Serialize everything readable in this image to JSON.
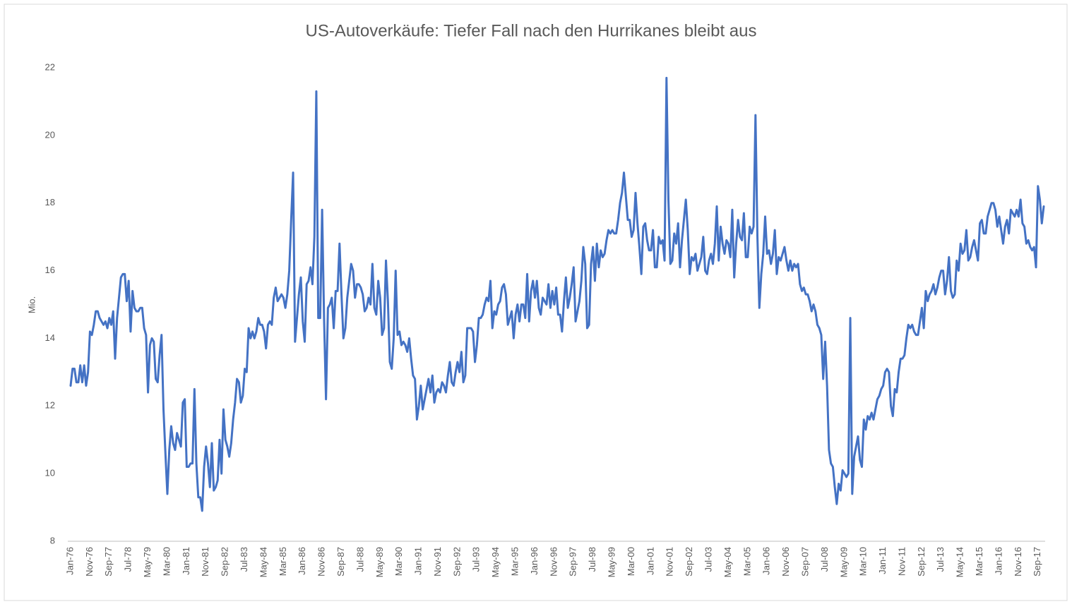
{
  "chart_data": {
    "type": "line",
    "title": "US-Autoverkäufe: Tiefer Fall nach den Hurrikanes bleibt aus",
    "y_label": "Mio.",
    "color": "#4472c4",
    "grid": false,
    "ylim": [
      8,
      22
    ],
    "yticks": [
      8,
      10,
      12,
      14,
      16,
      18,
      20,
      22
    ],
    "categories": [
      "Jan-76",
      null,
      null,
      null,
      null,
      null,
      null,
      null,
      null,
      null,
      "Nov-76",
      null,
      null,
      null,
      null,
      null,
      null,
      null,
      null,
      null,
      "Sep-77",
      null,
      null,
      null,
      null,
      null,
      null,
      null,
      null,
      null,
      "Jul-78",
      null,
      null,
      null,
      null,
      null,
      null,
      null,
      null,
      null,
      "May-79",
      null,
      null,
      null,
      null,
      null,
      null,
      null,
      null,
      null,
      "Mar-80",
      null,
      null,
      null,
      null,
      null,
      null,
      null,
      null,
      null,
      "Jan-81",
      null,
      null,
      null,
      null,
      null,
      null,
      null,
      null,
      null,
      "Nov-81",
      null,
      null,
      null,
      null,
      null,
      null,
      null,
      null,
      null,
      "Sep-82",
      null,
      null,
      null,
      null,
      null,
      null,
      null,
      null,
      null,
      "Jul-83",
      null,
      null,
      null,
      null,
      null,
      null,
      null,
      null,
      null,
      "May-84",
      null,
      null,
      null,
      null,
      null,
      null,
      null,
      null,
      null,
      "Mar-85",
      null,
      null,
      null,
      null,
      null,
      null,
      null,
      null,
      null,
      "Jan-86",
      null,
      null,
      null,
      null,
      null,
      null,
      null,
      null,
      null,
      "Nov-86",
      null,
      null,
      null,
      null,
      null,
      null,
      null,
      null,
      null,
      "Sep-87",
      null,
      null,
      null,
      null,
      null,
      null,
      null,
      null,
      null,
      "Jul-88",
      null,
      null,
      null,
      null,
      null,
      null,
      null,
      null,
      null,
      "May-89",
      null,
      null,
      null,
      null,
      null,
      null,
      null,
      null,
      null,
      "Mar-90",
      null,
      null,
      null,
      null,
      null,
      null,
      null,
      null,
      null,
      "Jan-91",
      null,
      null,
      null,
      null,
      null,
      null,
      null,
      null,
      null,
      "Nov-91",
      null,
      null,
      null,
      null,
      null,
      null,
      null,
      null,
      null,
      "Sep-92",
      null,
      null,
      null,
      null,
      null,
      null,
      null,
      null,
      null,
      "Jul-93",
      null,
      null,
      null,
      null,
      null,
      null,
      null,
      null,
      null,
      "May-94",
      null,
      null,
      null,
      null,
      null,
      null,
      null,
      null,
      null,
      "Mar-95",
      null,
      null,
      null,
      null,
      null,
      null,
      null,
      null,
      null,
      "Jan-96",
      null,
      null,
      null,
      null,
      null,
      null,
      null,
      null,
      null,
      "Nov-96",
      null,
      null,
      null,
      null,
      null,
      null,
      null,
      null,
      null,
      "Sep-97",
      null,
      null,
      null,
      null,
      null,
      null,
      null,
      null,
      null,
      "Jul-98",
      null,
      null,
      null,
      null,
      null,
      null,
      null,
      null,
      null,
      "May-99",
      null,
      null,
      null,
      null,
      null,
      null,
      null,
      null,
      null,
      "Mar-00",
      null,
      null,
      null,
      null,
      null,
      null,
      null,
      null,
      null,
      "Jan-01",
      null,
      null,
      null,
      null,
      null,
      null,
      null,
      null,
      null,
      "Nov-01",
      null,
      null,
      null,
      null,
      null,
      null,
      null,
      null,
      null,
      "Sep-02",
      null,
      null,
      null,
      null,
      null,
      null,
      null,
      null,
      null,
      "Jul-03",
      null,
      null,
      null,
      null,
      null,
      null,
      null,
      null,
      null,
      "May-04",
      null,
      null,
      null,
      null,
      null,
      null,
      null,
      null,
      null,
      "Mar-05",
      null,
      null,
      null,
      null,
      null,
      null,
      null,
      null,
      null,
      "Jan-06",
      null,
      null,
      null,
      null,
      null,
      null,
      null,
      null,
      null,
      "Nov-06",
      null,
      null,
      null,
      null,
      null,
      null,
      null,
      null,
      null,
      "Sep-07",
      null,
      null,
      null,
      null,
      null,
      null,
      null,
      null,
      null,
      "Jul-08",
      null,
      null,
      null,
      null,
      null,
      null,
      null,
      null,
      null,
      "May-09",
      null,
      null,
      null,
      null,
      null,
      null,
      null,
      null,
      null,
      "Mar-10",
      null,
      null,
      null,
      null,
      null,
      null,
      null,
      null,
      null,
      "Jan-11",
      null,
      null,
      null,
      null,
      null,
      null,
      null,
      null,
      null,
      "Nov-11",
      null,
      null,
      null,
      null,
      null,
      null,
      null,
      null,
      null,
      "Sep-12",
      null,
      null,
      null,
      null,
      null,
      null,
      null,
      null,
      null,
      "Jul-13",
      null,
      null,
      null,
      null,
      null,
      null,
      null,
      null,
      null,
      "May-14",
      null,
      null,
      null,
      null,
      null,
      null,
      null,
      null,
      null,
      "Mar-15",
      null,
      null,
      null,
      null,
      null,
      null,
      null,
      null,
      null,
      "Jan-16",
      null,
      null,
      null,
      null,
      null,
      null,
      null,
      null,
      null,
      "Nov-16",
      null,
      null,
      null,
      null,
      null,
      null,
      null,
      null,
      null,
      "Sep-17",
      null,
      null,
      null
    ],
    "values": [
      12.6,
      13.1,
      13.1,
      12.7,
      12.7,
      13.2,
      12.7,
      13.2,
      12.6,
      13.0,
      14.2,
      14.1,
      14.4,
      14.8,
      14.8,
      14.6,
      14.5,
      14.4,
      14.5,
      14.3,
      14.6,
      14.4,
      14.8,
      13.4,
      14.6,
      15.2,
      15.8,
      15.9,
      15.9,
      15.1,
      15.7,
      14.2,
      15.4,
      14.9,
      14.8,
      14.8,
      14.9,
      14.9,
      14.3,
      14.1,
      12.4,
      13.8,
      14.0,
      13.9,
      12.8,
      12.7,
      13.5,
      14.1,
      11.9,
      10.6,
      9.4,
      10.7,
      11.4,
      10.9,
      10.7,
      11.2,
      11.0,
      10.8,
      12.1,
      12.2,
      10.2,
      10.2,
      10.3,
      10.3,
      12.5,
      10.3,
      9.3,
      9.3,
      8.9,
      10.2,
      10.8,
      10.3,
      9.6,
      10.9,
      9.5,
      9.6,
      9.8,
      11.0,
      10.0,
      11.9,
      11.0,
      10.8,
      10.5,
      10.9,
      11.6,
      12.1,
      12.8,
      12.7,
      12.1,
      12.3,
      13.1,
      13.0,
      14.3,
      14.0,
      14.2,
      14.0,
      14.2,
      14.6,
      14.4,
      14.4,
      14.2,
      13.7,
      14.4,
      14.5,
      14.4,
      15.2,
      15.5,
      15.1,
      15.2,
      15.3,
      15.2,
      14.9,
      15.3,
      16.0,
      17.5,
      18.9,
      13.9,
      14.6,
      15.3,
      15.8,
      14.5,
      13.9,
      15.6,
      15.7,
      16.1,
      15.6,
      17.0,
      21.3,
      14.6,
      14.6,
      17.8,
      14.6,
      12.2,
      14.9,
      15.0,
      15.2,
      14.3,
      15.4,
      15.4,
      16.8,
      15.3,
      14.0,
      14.3,
      15.2,
      15.7,
      16.2,
      16.0,
      15.2,
      15.6,
      15.6,
      15.5,
      15.3,
      14.8,
      14.9,
      15.2,
      15.0,
      16.2,
      14.9,
      14.7,
      15.7,
      15.2,
      14.1,
      14.3,
      16.3,
      15.1,
      13.3,
      13.1,
      14.0,
      16.0,
      14.1,
      14.2,
      13.8,
      13.9,
      13.8,
      13.6,
      14.0,
      13.4,
      12.9,
      12.8,
      11.6,
      12.0,
      12.6,
      11.9,
      12.2,
      12.5,
      12.8,
      12.4,
      12.9,
      12.1,
      12.4,
      12.5,
      12.4,
      12.7,
      12.6,
      12.4,
      12.9,
      13.3,
      12.7,
      12.6,
      13.0,
      13.3,
      13.0,
      13.6,
      12.7,
      12.9,
      14.3,
      14.3,
      14.3,
      14.2,
      13.3,
      13.8,
      14.6,
      14.6,
      14.7,
      15.0,
      15.2,
      15.1,
      15.7,
      14.3,
      14.8,
      14.7,
      15.0,
      15.1,
      15.5,
      15.6,
      15.3,
      14.4,
      14.6,
      14.8,
      14.0,
      14.7,
      15.0,
      14.5,
      15.0,
      15.0,
      14.6,
      15.9,
      14.5,
      15.4,
      15.7,
      15.2,
      15.7,
      14.9,
      14.7,
      15.2,
      15.1,
      15.0,
      15.6,
      14.9,
      15.4,
      15.0,
      15.5,
      14.7,
      14.7,
      14.2,
      15.1,
      15.8,
      14.9,
      15.2,
      15.6,
      16.1,
      14.5,
      14.8,
      15.1,
      15.7,
      16.7,
      16.2,
      14.3,
      14.4,
      16.2,
      16.7,
      15.7,
      16.8,
      16.1,
      16.6,
      16.4,
      16.5,
      16.9,
      17.2,
      17.1,
      17.2,
      17.1,
      17.1,
      17.5,
      18.0,
      18.3,
      18.9,
      18.2,
      17.5,
      17.5,
      17.0,
      17.2,
      18.3,
      17.4,
      16.7,
      15.9,
      17.3,
      17.4,
      16.9,
      16.6,
      16.6,
      17.2,
      16.1,
      16.1,
      17.0,
      16.8,
      16.9,
      16.3,
      21.7,
      18.1,
      16.2,
      16.3,
      17.1,
      16.8,
      17.4,
      16.1,
      16.9,
      17.5,
      18.1,
      17.2,
      15.9,
      16.4,
      16.3,
      16.5,
      16.0,
      16.2,
      16.4,
      17.0,
      16.0,
      15.9,
      16.3,
      16.5,
      16.2,
      16.8,
      17.9,
      16.3,
      17.3,
      16.8,
      16.5,
      16.9,
      16.8,
      16.4,
      17.8,
      15.8,
      16.8,
      17.5,
      17.0,
      16.9,
      17.7,
      16.4,
      16.4,
      17.3,
      17.1,
      17.3,
      20.6,
      17.0,
      14.9,
      15.9,
      16.5,
      17.6,
      16.5,
      16.6,
      16.2,
      16.5,
      17.2,
      15.9,
      16.4,
      16.3,
      16.5,
      16.7,
      16.3,
      16.0,
      16.3,
      16.0,
      16.2,
      16.1,
      16.2,
      15.6,
      15.4,
      15.5,
      15.3,
      15.3,
      15.1,
      14.8,
      15.0,
      14.8,
      14.4,
      14.3,
      14.1,
      12.8,
      13.9,
      12.6,
      10.7,
      10.3,
      10.2,
      9.6,
      9.1,
      9.7,
      9.5,
      10.1,
      10.0,
      9.9,
      10.0,
      14.6,
      9.4,
      10.5,
      10.8,
      11.1,
      10.4,
      10.2,
      11.6,
      11.3,
      11.7,
      11.6,
      11.8,
      11.6,
      11.9,
      12.2,
      12.3,
      12.5,
      12.6,
      13.0,
      13.1,
      13.0,
      12.0,
      11.7,
      12.5,
      12.4,
      13.0,
      13.4,
      13.4,
      13.5,
      14.0,
      14.4,
      14.3,
      14.4,
      14.2,
      14.1,
      14.1,
      14.5,
      14.9,
      14.3,
      15.4,
      15.1,
      15.3,
      15.4,
      15.6,
      15.3,
      15.5,
      15.8,
      16.0,
      16.0,
      15.3,
      15.7,
      16.4,
      15.4,
      15.2,
      15.3,
      16.3,
      16.0,
      16.8,
      16.5,
      16.6,
      17.2,
      16.3,
      16.4,
      16.7,
      16.9,
      16.6,
      16.3,
      17.4,
      17.5,
      17.1,
      17.1,
      17.6,
      17.8,
      18.0,
      18.0,
      17.8,
      17.3,
      17.6,
      17.2,
      16.8,
      17.3,
      17.5,
      17.1,
      17.8,
      17.7,
      17.6,
      17.8,
      17.6,
      18.1,
      17.4,
      17.3,
      16.8,
      16.9,
      16.7,
      16.6,
      16.7,
      16.1,
      18.5,
      18.1,
      17.4,
      17.9
    ]
  }
}
